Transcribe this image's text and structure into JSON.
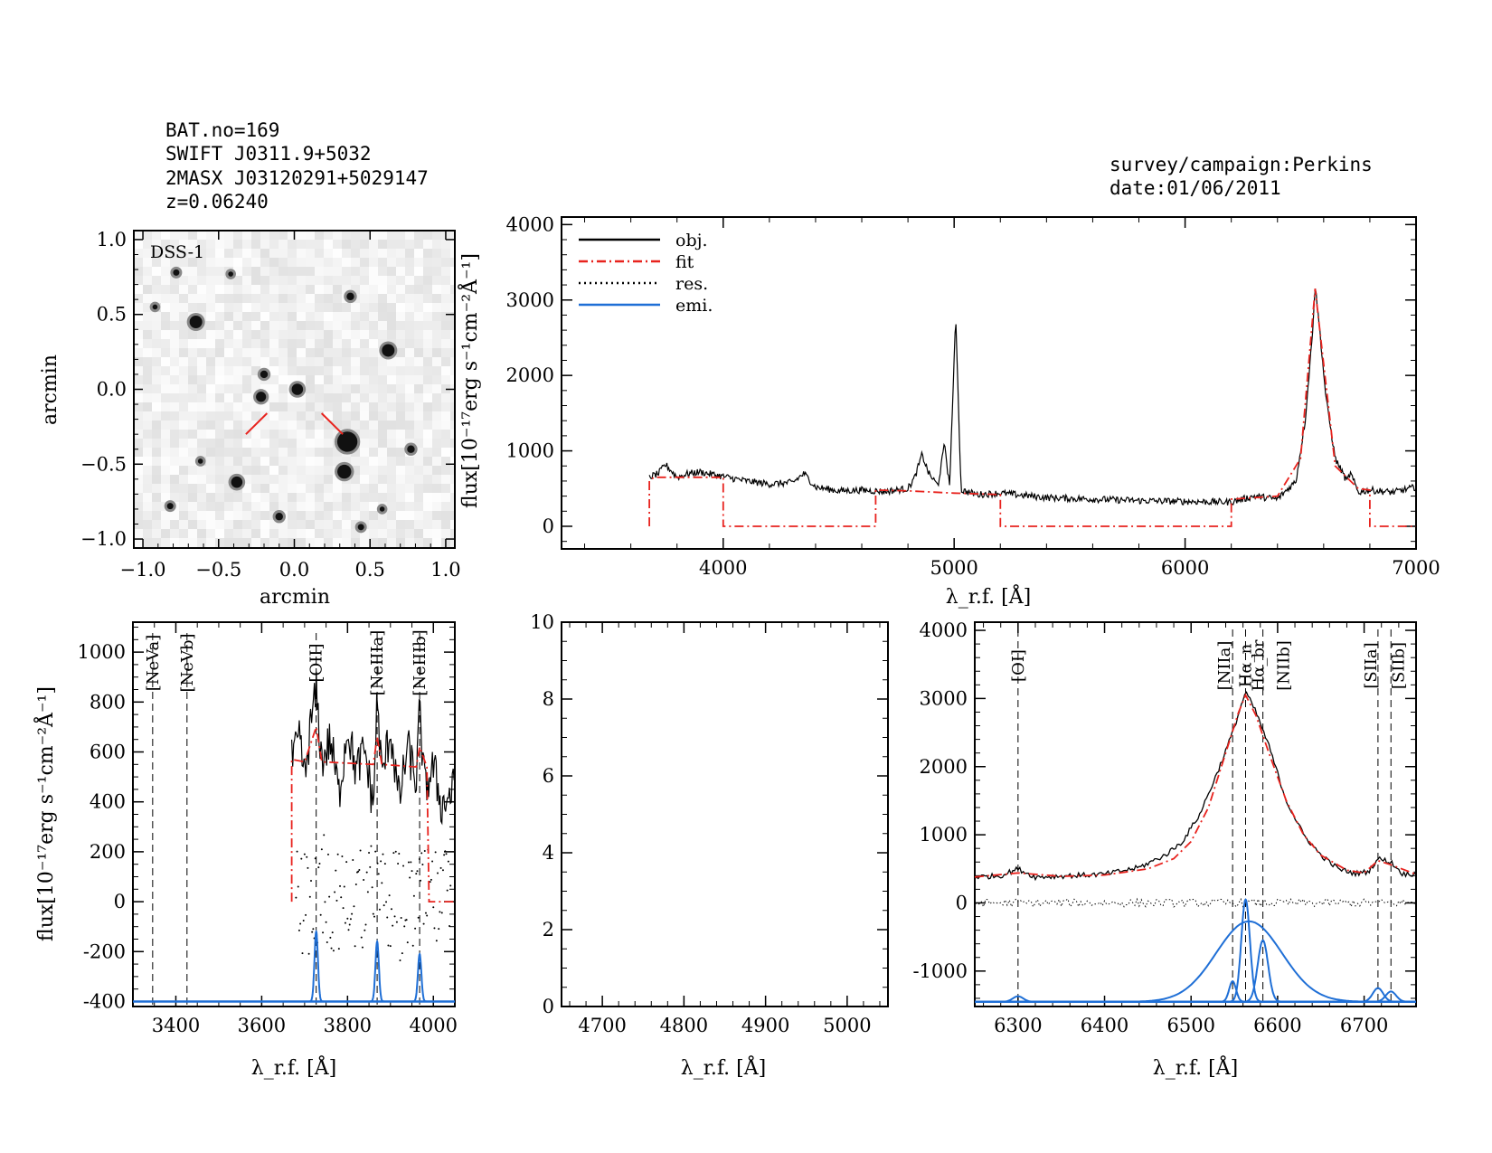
{
  "header_left": {
    "line1": "BAT.no=169",
    "line2": "SWIFT J0311.9+5032",
    "line3": "2MASX J03120291+5029147",
    "line4": "z=0.06240"
  },
  "header_right": {
    "line1": "survey/campaign:Perkins",
    "line2": "date:01/06/2011"
  },
  "colors": {
    "obj": "#000000",
    "fit": "#e8231e",
    "emi": "#1f6fd6",
    "res": "#000000"
  },
  "image_panel": {
    "label": "DSS-1",
    "xlabel": "arcmin",
    "ylabel": "arcmin",
    "xticks": [
      "−1.0",
      "−0.5",
      "0.0",
      "0.5",
      "1.0"
    ],
    "yticks": [
      "−1.0",
      "−0.5",
      "0.0",
      "0.5",
      "1.0"
    ],
    "stars": [
      {
        "x": -0.65,
        "y": 0.45,
        "s": 1.0
      },
      {
        "x": 0.62,
        "y": 0.26,
        "s": 1.0
      },
      {
        "x": -0.2,
        "y": 0.1,
        "s": 0.6
      },
      {
        "x": -0.22,
        "y": -0.05,
        "s": 0.8
      },
      {
        "x": 0.02,
        "y": 0.0,
        "s": 0.9
      },
      {
        "x": 0.35,
        "y": -0.35,
        "s": 1.6
      },
      {
        "x": 0.33,
        "y": -0.55,
        "s": 1.1
      },
      {
        "x": -0.38,
        "y": -0.62,
        "s": 0.9
      },
      {
        "x": 0.37,
        "y": 0.62,
        "s": 0.6
      },
      {
        "x": 0.77,
        "y": -0.4,
        "s": 0.6
      },
      {
        "x": -0.78,
        "y": 0.78,
        "s": 0.5
      },
      {
        "x": -0.42,
        "y": 0.77,
        "s": 0.4
      },
      {
        "x": -0.1,
        "y": -0.85,
        "s": 0.6
      },
      {
        "x": -0.82,
        "y": -0.78,
        "s": 0.5
      },
      {
        "x": 0.44,
        "y": -0.92,
        "s": 0.5
      },
      {
        "x": -0.92,
        "y": 0.55,
        "s": 0.4
      },
      {
        "x": -0.62,
        "y": -0.48,
        "s": 0.4
      },
      {
        "x": 0.58,
        "y": -0.8,
        "s": 0.4
      }
    ]
  },
  "chart_data": [
    {
      "type": "line",
      "panel": "full_spectrum",
      "xlabel": "λ_r.f. [Å]",
      "ylabel": "flux[10⁻¹⁷erg s⁻¹cm⁻²Å⁻¹]",
      "xlim": [
        3300,
        7000
      ],
      "ylim": [
        -300,
        4100
      ],
      "xticks": [
        4000,
        5000,
        6000,
        7000
      ],
      "yticks": [
        0,
        1000,
        2000,
        3000,
        4000
      ],
      "legend": [
        "obj.",
        "fit",
        "res.",
        "emi."
      ],
      "legend_position": "top-left",
      "obj": {
        "x": [
          3680,
          3720,
          3750,
          3800,
          3850,
          3900,
          4000,
          4100,
          4200,
          4300,
          4350,
          4400,
          4500,
          4600,
          4700,
          4800,
          4830,
          4861,
          4890,
          4930,
          4959,
          4980,
          5007,
          5030,
          5100,
          5200,
          5400,
          5600,
          5800,
          6000,
          6200,
          6300,
          6400,
          6480,
          6520,
          6550,
          6563,
          6583,
          6610,
          6650,
          6700,
          6716,
          6750,
          6800,
          6900,
          7000
        ],
        "y": [
          650,
          700,
          820,
          650,
          700,
          720,
          660,
          600,
          560,
          580,
          700,
          520,
          470,
          480,
          460,
          500,
          650,
          950,
          700,
          540,
          1100,
          520,
          2780,
          480,
          420,
          440,
          380,
          360,
          340,
          330,
          320,
          400,
          360,
          600,
          1400,
          2500,
          3200,
          2600,
          1700,
          900,
          600,
          700,
          450,
          480,
          450,
          520
        ]
      },
      "fit_continuum": {
        "x": [
          3680,
          3680,
          3700,
          4000,
          4000,
          4660,
          4660,
          4800,
          5000,
          5200,
          5200,
          6200,
          6200,
          6400,
          6500,
          6563,
          6650,
          6750,
          6800,
          6800,
          7000
        ],
        "y": [
          0,
          600,
          650,
          650,
          0,
          0,
          480,
          470,
          440,
          420,
          0,
          0,
          360,
          400,
          900,
          3150,
          800,
          500,
          480,
          0,
          0
        ]
      }
    },
    {
      "type": "line",
      "panel": "blue_end",
      "xlabel": "λ_r.f. [Å]",
      "ylabel": "flux[10⁻¹⁷erg s⁻¹cm⁻²Å⁻¹]",
      "xlim": [
        3300,
        4050
      ],
      "ylim": [
        -420,
        1120
      ],
      "xticks": [
        3400,
        3600,
        3800,
        4000
      ],
      "yticks": [
        -400,
        -200,
        0,
        200,
        400,
        600,
        800,
        1000
      ],
      "lines": [
        {
          "name": "[NeVa]",
          "x": 3346,
          "color": "fit"
        },
        {
          "name": "[NeVb]",
          "x": 3426,
          "color": "fit"
        },
        {
          "name": "[OII]",
          "x": 3727,
          "color": "fit"
        },
        {
          "name": "[NeIIIa]",
          "x": 3869,
          "color": "fit"
        },
        {
          "name": "[NeIIIb]",
          "x": 3968,
          "color": "fit"
        }
      ],
      "obj": {
        "x": [
          3670,
          3690,
          3700,
          3715,
          3727,
          3740,
          3760,
          3780,
          3800,
          3820,
          3840,
          3860,
          3869,
          3880,
          3900,
          3920,
          3940,
          3960,
          3968,
          3980,
          4000,
          4020,
          4050
        ],
        "y": [
          560,
          650,
          480,
          720,
          840,
          560,
          650,
          430,
          700,
          520,
          610,
          380,
          820,
          500,
          690,
          400,
          620,
          480,
          770,
          450,
          540,
          380,
          460
        ]
      },
      "fit": {
        "x": [
          3670,
          3670,
          3700,
          3727,
          3740,
          3860,
          3869,
          3880,
          3960,
          3968,
          3985,
          3990,
          4050
        ],
        "y": [
          0,
          570,
          560,
          700,
          560,
          550,
          660,
          550,
          540,
          620,
          540,
          0,
          0
        ]
      },
      "emission_baseline": -400,
      "emission_peaks": [
        {
          "x": 3727,
          "amp": 280,
          "sigma": 4
        },
        {
          "x": 3869,
          "amp": 240,
          "sigma": 4
        },
        {
          "x": 3968,
          "amp": 190,
          "sigma": 4
        }
      ]
    },
    {
      "type": "line",
      "panel": "hbeta_empty",
      "xlabel": "λ_r.f. [Å]",
      "xlim": [
        4650,
        5050
      ],
      "ylim": [
        0,
        10
      ],
      "xticks": [
        4700,
        4800,
        4900,
        5000
      ],
      "yticks": [
        0,
        2,
        4,
        6,
        8,
        10
      ]
    },
    {
      "type": "line",
      "panel": "halpha",
      "xlabel": "λ_r.f. [Å]",
      "xlim": [
        6250,
        6760
      ],
      "ylim": [
        -1520,
        4120
      ],
      "xticks": [
        6300,
        6400,
        6500,
        6600,
        6700
      ],
      "yticks": [
        -1000,
        0,
        1000,
        2000,
        3000,
        4000
      ],
      "lines": [
        {
          "name": "[OI]",
          "x": 6300,
          "color": "fit"
        },
        {
          "name": "[NIIa]",
          "x": 6548,
          "color": "obj"
        },
        {
          "name": "Hα_n",
          "x": 6563,
          "color": "obj"
        },
        {
          "name": "Hα_br",
          "x": 6563,
          "color": "obj"
        },
        {
          "name": "[NIIb]",
          "x": 6583,
          "color": "obj"
        },
        {
          "name": "[SIIa]",
          "x": 6716,
          "color": "obj"
        },
        {
          "name": "[SIIb]",
          "x": 6731,
          "color": "obj"
        }
      ],
      "obj": {
        "x": [
          6250,
          6280,
          6300,
          6320,
          6360,
          6400,
          6440,
          6470,
          6490,
          6510,
          6530,
          6548,
          6563,
          6575,
          6590,
          6610,
          6630,
          6650,
          6670,
          6690,
          6705,
          6716,
          6731,
          6745,
          6760
        ],
        "y": [
          380,
          400,
          500,
          380,
          400,
          420,
          520,
          700,
          900,
          1300,
          1900,
          2500,
          3100,
          2800,
          2300,
          1500,
          1000,
          700,
          500,
          430,
          460,
          650,
          600,
          420,
          430
        ]
      },
      "fit": {
        "x": [
          6250,
          6300,
          6350,
          6400,
          6450,
          6480,
          6500,
          6520,
          6540,
          6555,
          6563,
          6575,
          6590,
          6610,
          6630,
          6650,
          6680,
          6700,
          6716,
          6731,
          6760
        ],
        "y": [
          380,
          440,
          390,
          410,
          500,
          650,
          900,
          1400,
          2200,
          2800,
          3050,
          2750,
          2200,
          1500,
          1000,
          700,
          480,
          440,
          620,
          560,
          420
        ]
      },
      "emission_baseline": -1450,
      "emission_components": [
        {
          "name": "[OI]",
          "x": 6300,
          "amp": 80,
          "sigma": 6
        },
        {
          "name": "[NIIa]",
          "x": 6548,
          "amp": 300,
          "sigma": 4
        },
        {
          "name": "Hα_n",
          "x": 6563,
          "amp": 1500,
          "sigma": 5
        },
        {
          "name": "Hα_br",
          "x": 6567,
          "amp": 1180,
          "sigma": 38
        },
        {
          "name": "[NIIb]",
          "x": 6583,
          "amp": 900,
          "sigma": 6
        },
        {
          "name": "[SIIa]",
          "x": 6716,
          "amp": 200,
          "sigma": 6
        },
        {
          "name": "[SIIb]",
          "x": 6731,
          "amp": 150,
          "sigma": 6
        }
      ]
    }
  ]
}
